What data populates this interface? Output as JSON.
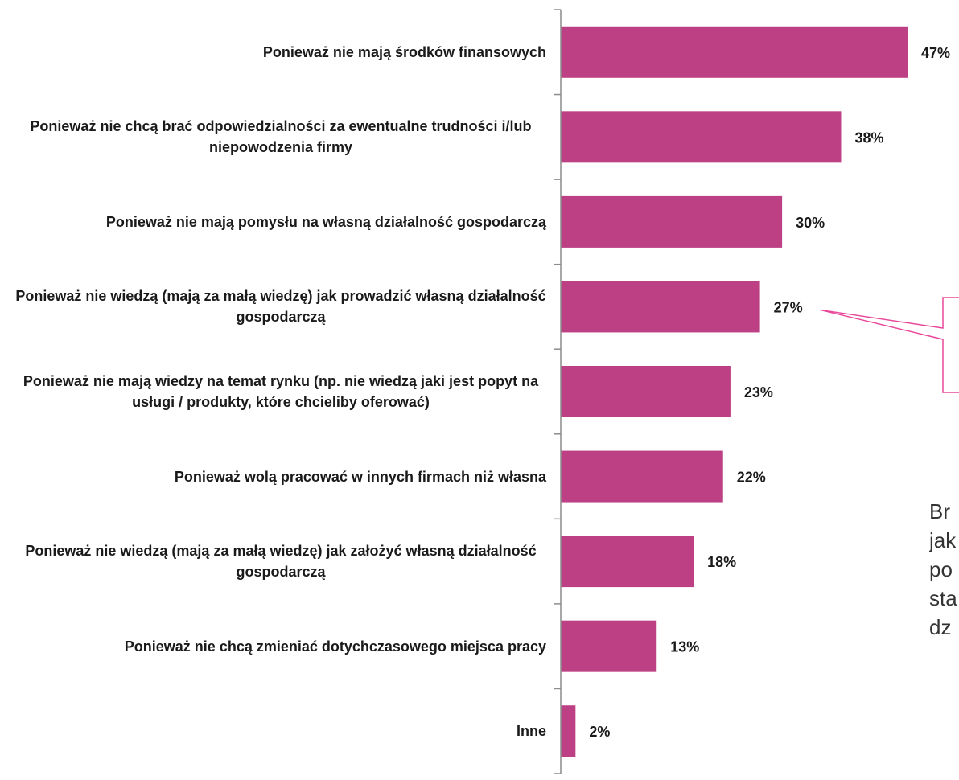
{
  "chart_data": {
    "type": "bar",
    "orientation": "horizontal",
    "categories": [
      "Ponieważ nie mają środków finansowych",
      "Ponieważ nie chcą brać odpowiedzialności za ewentualne trudności i/lub niepowodzenia firmy",
      "Ponieważ nie mają pomysłu na własną działalność gospodarczą",
      "Ponieważ nie wiedzą (mają za małą wiedzę)  jak prowadzić własną działalność gospodarczą",
      "Ponieważ nie mają wiedzy na temat rynku (np. nie wiedzą jaki jest popyt na usługi / produkty, które chcieliby oferować)",
      "Ponieważ wolą pracować w innych firmach niż własna",
      "Ponieważ nie wiedzą (mają za małą wiedzę) jak założyć własną działalność gospodarczą",
      "Ponieważ nie chcą zmieniać dotychczasowego miejsca pracy",
      "Inne"
    ],
    "values": [
      47,
      38,
      30,
      27,
      23,
      22,
      18,
      13,
      2
    ],
    "value_labels": [
      "47%",
      "38%",
      "30%",
      "27%",
      "23%",
      "22%",
      "18%",
      "13%",
      "2%"
    ],
    "xlim": [
      0,
      50
    ],
    "grid": false,
    "legend": "none",
    "bar_color": "#bd4085",
    "callout_color": "#e8489a",
    "axis_color": "#8c8c8c"
  },
  "side_text_fragments": [
    "Br",
    "jak",
    "po",
    "sta",
    "dz"
  ]
}
